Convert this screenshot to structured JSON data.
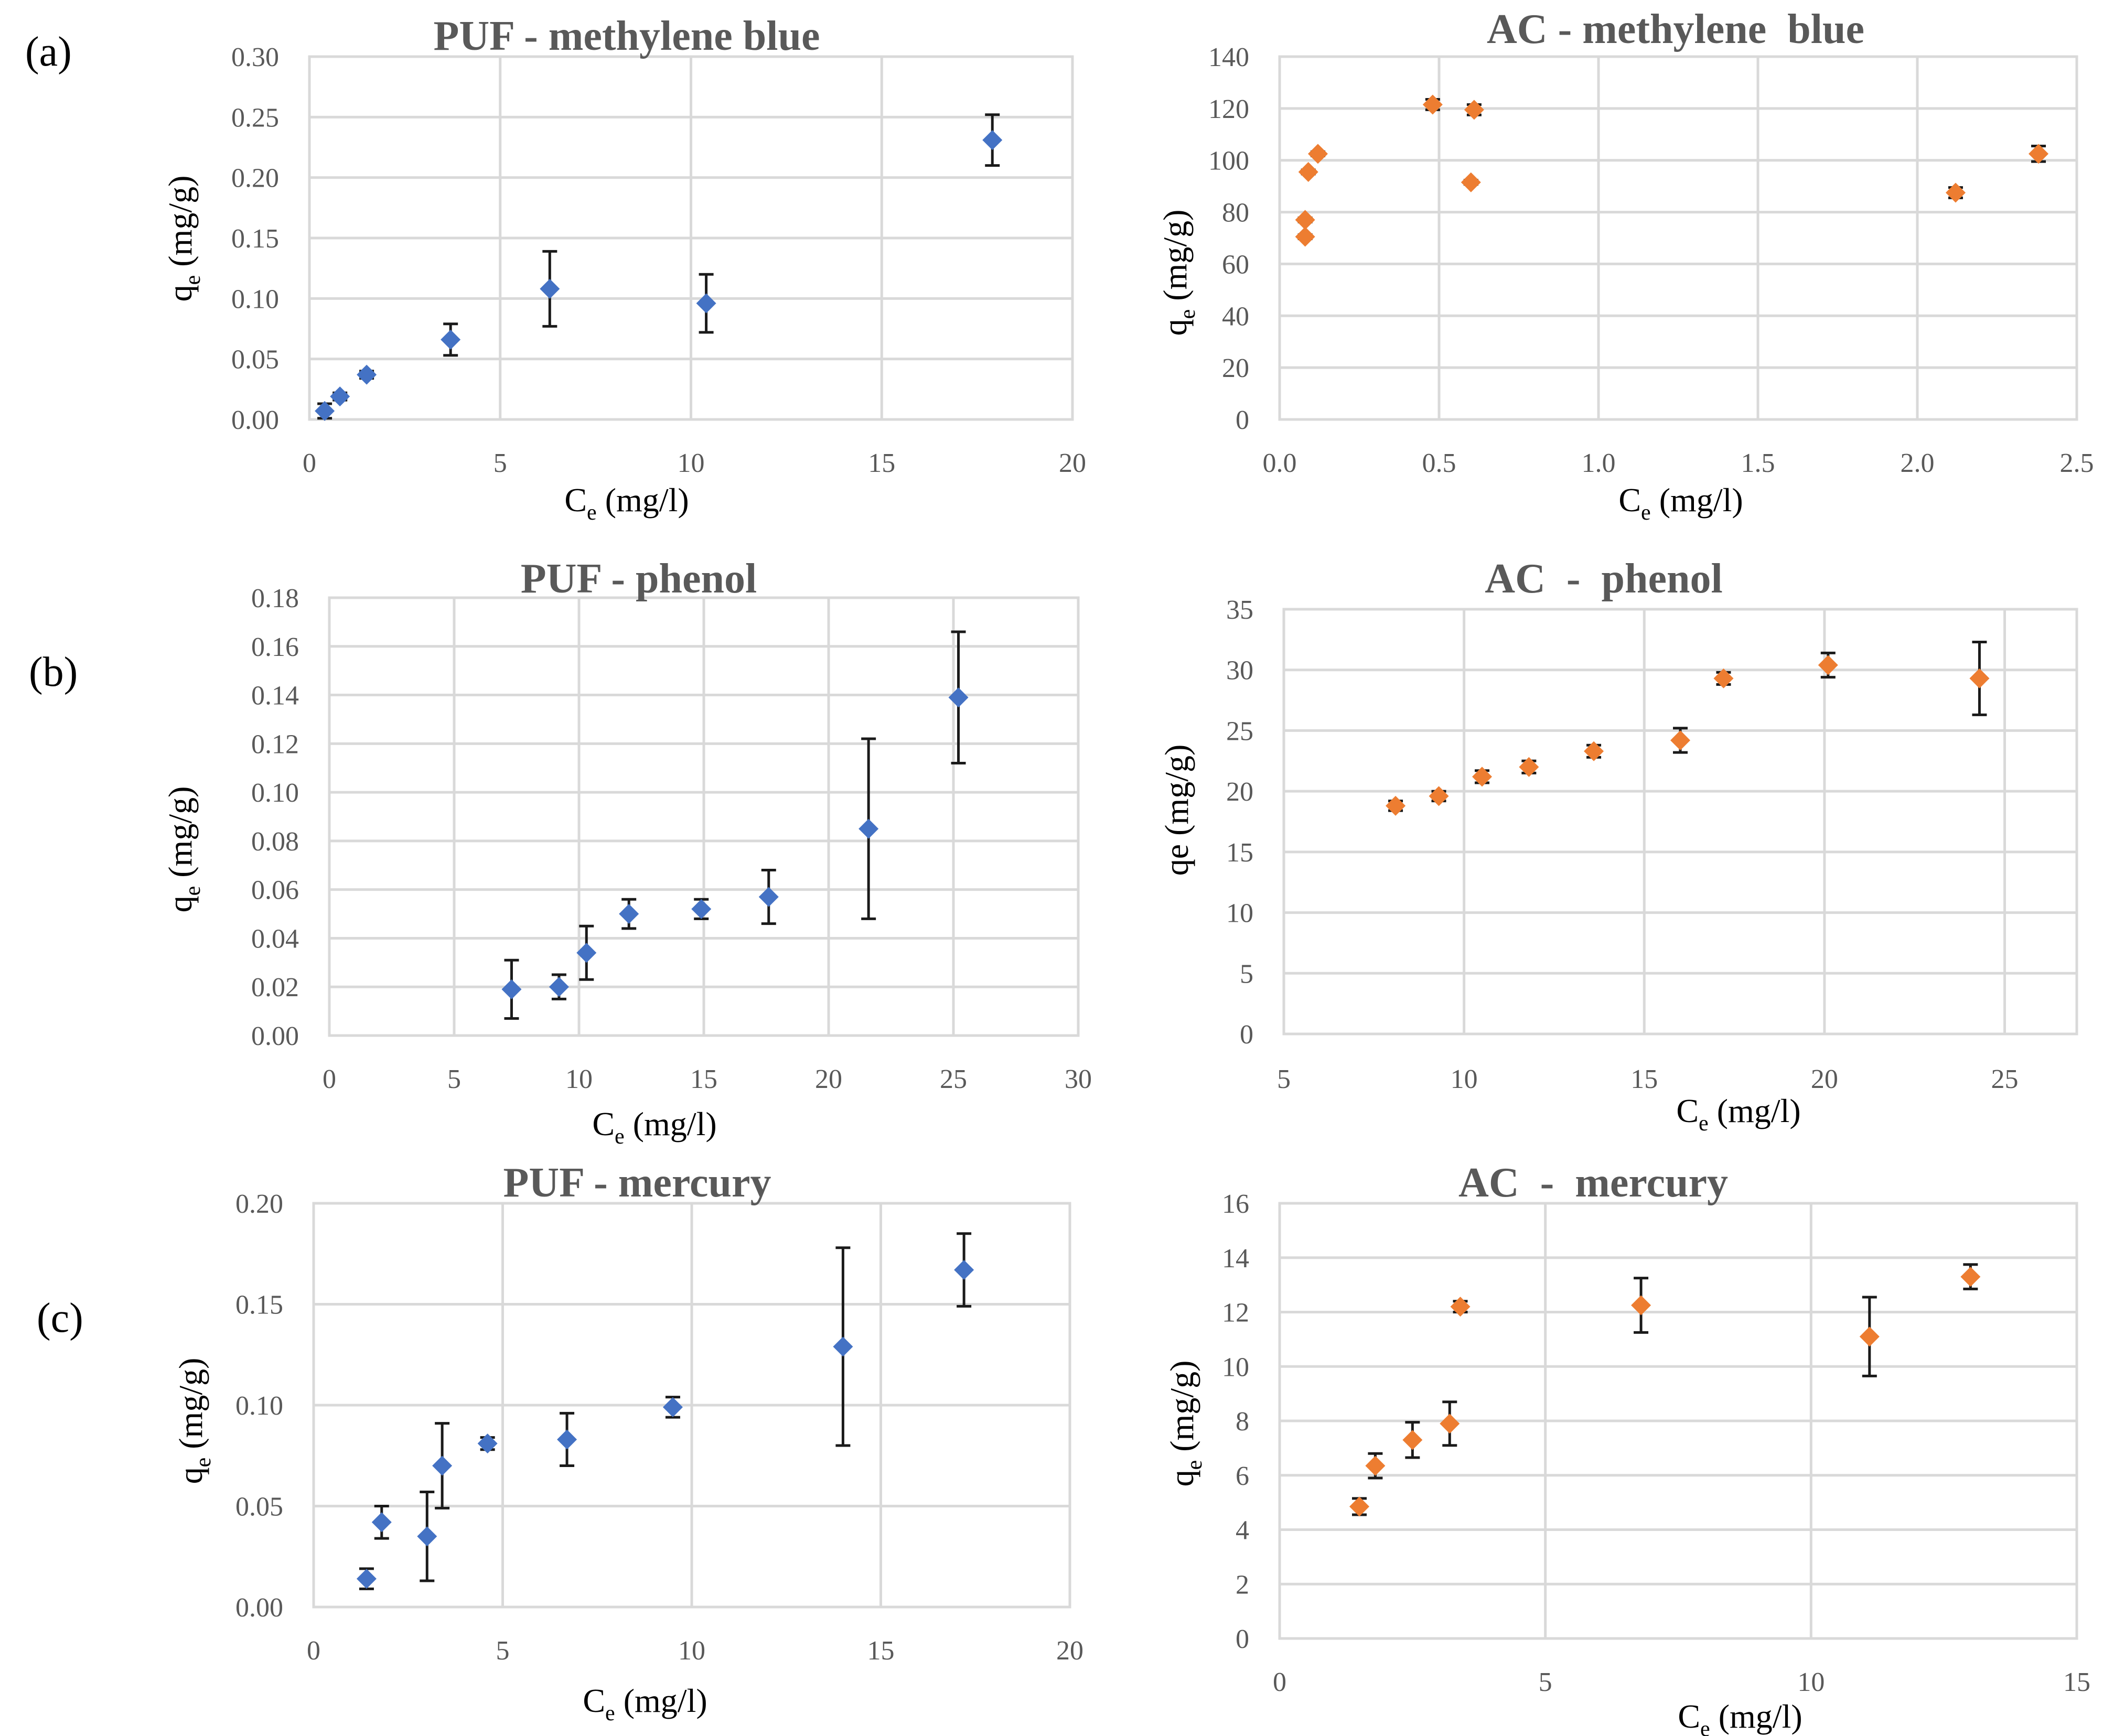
{
  "panel_labels": [
    "(a)",
    "(b)",
    "(c)"
  ],
  "chart_data": [
    {
      "id": "puf-mb",
      "type": "scatter",
      "title": "PUF - methylene blue",
      "xlabel_main": "C",
      "xlabel_sub": "e",
      "xlabel_rest": " (mg/l)",
      "ylabel_main": "q",
      "ylabel_sub": "e",
      "ylabel_rest": " (mg/g)",
      "xlim": [
        0,
        20
      ],
      "xticks": [
        0,
        5,
        10,
        15,
        20
      ],
      "xtick_labels": [
        "0",
        "5",
        "10",
        "15",
        "20"
      ],
      "ylim": [
        0,
        0.3
      ],
      "yticks": [
        0,
        0.05,
        0.1,
        0.15,
        0.2,
        0.25,
        0.3
      ],
      "ytick_labels": [
        "0.00",
        "0.05",
        "0.10",
        "0.15",
        "0.20",
        "0.25",
        "0.30"
      ],
      "color": "#4472c4",
      "points": [
        {
          "x": 0.4,
          "y": 0.007,
          "err": 0.006
        },
        {
          "x": 0.8,
          "y": 0.019,
          "err": 0.003
        },
        {
          "x": 1.5,
          "y": 0.037,
          "err": 0.003
        },
        {
          "x": 3.7,
          "y": 0.066,
          "err": 0.013
        },
        {
          "x": 6.3,
          "y": 0.108,
          "err": 0.031
        },
        {
          "x": 10.4,
          "y": 0.096,
          "err": 0.024
        },
        {
          "x": 17.9,
          "y": 0.231,
          "err": 0.021
        }
      ]
    },
    {
      "id": "ac-mb",
      "type": "scatter",
      "title": "AC - methylene  blue",
      "xlabel_main": "C",
      "xlabel_sub": "e",
      "xlabel_rest": " (mg/l)",
      "ylabel_main": "q",
      "ylabel_sub": "e",
      "ylabel_rest": " (mg/g)",
      "xlim": [
        0,
        2.5
      ],
      "xticks": [
        0,
        0.5,
        1,
        1.5,
        2,
        2.5
      ],
      "xtick_labels": [
        "0.0",
        "0.5",
        "1.0",
        "1.5",
        "2.0",
        "2.5"
      ],
      "ylim": [
        0,
        140
      ],
      "yticks": [
        0,
        20,
        40,
        60,
        80,
        100,
        120,
        140
      ],
      "ytick_labels": [
        "0",
        "20",
        "40",
        "60",
        "80",
        "100",
        "120",
        "140"
      ],
      "color": "#ed7d31",
      "points": [
        {
          "x": 0.08,
          "y": 70.5,
          "err": 0.8
        },
        {
          "x": 0.08,
          "y": 77,
          "err": 0.8
        },
        {
          "x": 0.09,
          "y": 95.5,
          "err": 0.8
        },
        {
          "x": 0.12,
          "y": 102.5,
          "err": 0.8
        },
        {
          "x": 0.48,
          "y": 121.5,
          "err": 2
        },
        {
          "x": 0.6,
          "y": 91.5,
          "err": 0.8
        },
        {
          "x": 0.61,
          "y": 119.5,
          "err": 2
        },
        {
          "x": 2.12,
          "y": 87.5,
          "err": 2
        },
        {
          "x": 2.38,
          "y": 102.5,
          "err": 3
        }
      ]
    },
    {
      "id": "puf-phenol",
      "type": "scatter",
      "title": "PUF - phenol",
      "xlabel_main": "C",
      "xlabel_sub": "e",
      "xlabel_rest": " (mg/l)",
      "ylabel_main": "q",
      "ylabel_sub": "e",
      "ylabel_rest": " (mg/g)",
      "xlim": [
        0,
        30
      ],
      "xticks": [
        0,
        5,
        10,
        15,
        20,
        25,
        30
      ],
      "xtick_labels": [
        "0",
        "5",
        "10",
        "15",
        "20",
        "25",
        "30"
      ],
      "ylim": [
        0,
        0.18
      ],
      "yticks": [
        0,
        0.02,
        0.04,
        0.06,
        0.08,
        0.1,
        0.12,
        0.14,
        0.16,
        0.18
      ],
      "ytick_labels": [
        "0.00",
        "0.02",
        "0.04",
        "0.06",
        "0.08",
        "0.10",
        "0.12",
        "0.14",
        "0.16",
        "0.18"
      ],
      "color": "#4472c4",
      "points": [
        {
          "x": 7.3,
          "y": 0.019,
          "err": 0.012
        },
        {
          "x": 9.2,
          "y": 0.02,
          "err": 0.005
        },
        {
          "x": 10.3,
          "y": 0.034,
          "err": 0.011
        },
        {
          "x": 12.0,
          "y": 0.05,
          "err": 0.006
        },
        {
          "x": 14.9,
          "y": 0.052,
          "err": 0.004
        },
        {
          "x": 17.6,
          "y": 0.057,
          "err": 0.011
        },
        {
          "x": 21.6,
          "y": 0.085,
          "err": 0.037
        },
        {
          "x": 25.2,
          "y": 0.139,
          "err": 0.027
        }
      ]
    },
    {
      "id": "ac-phenol",
      "type": "scatter",
      "title": "AC  -  phenol",
      "xlabel_main": "C",
      "xlabel_sub": "e",
      "xlabel_rest": " (mg/l)",
      "ylabel_main": "qe",
      "ylabel_sub": "",
      "ylabel_rest": " (mg/g)",
      "xlim": [
        5,
        27
      ],
      "xticks": [
        5,
        10,
        15,
        20,
        25
      ],
      "xtick_labels": [
        "5",
        "10",
        "15",
        "20",
        "25"
      ],
      "ylim": [
        0,
        35
      ],
      "yticks": [
        0,
        5,
        10,
        15,
        20,
        25,
        30,
        35
      ],
      "ytick_labels": [
        "0",
        "5",
        "10",
        "15",
        "20",
        "25",
        "30",
        "35"
      ],
      "color": "#ed7d31",
      "points": [
        {
          "x": 8.1,
          "y": 18.8,
          "err": 0.4
        },
        {
          "x": 9.3,
          "y": 19.6,
          "err": 0.4
        },
        {
          "x": 10.5,
          "y": 21.2,
          "err": 0.5
        },
        {
          "x": 11.8,
          "y": 22.0,
          "err": 0.5
        },
        {
          "x": 13.6,
          "y": 23.3,
          "err": 0.5
        },
        {
          "x": 16.0,
          "y": 24.2,
          "err": 1.0
        },
        {
          "x": 17.2,
          "y": 29.3,
          "err": 0.5
        },
        {
          "x": 20.1,
          "y": 30.4,
          "err": 1.0
        },
        {
          "x": 24.3,
          "y": 29.3,
          "err": 3.0
        }
      ]
    },
    {
      "id": "puf-hg",
      "type": "scatter",
      "title": "PUF - mercury",
      "xlabel_main": "C",
      "xlabel_sub": "e",
      "xlabel_rest": " (mg/l)",
      "ylabel_main": "q",
      "ylabel_sub": "e",
      "ylabel_rest": " (mg/g)",
      "xlim": [
        0,
        20
      ],
      "xticks": [
        0,
        5,
        10,
        15,
        20
      ],
      "xtick_labels": [
        "0",
        "5",
        "10",
        "15",
        "20"
      ],
      "ylim": [
        0,
        0.2
      ],
      "yticks": [
        0,
        0.05,
        0.1,
        0.15,
        0.2
      ],
      "ytick_labels": [
        "0.00",
        "0.05",
        "0.10",
        "0.15",
        "0.20"
      ],
      "color": "#4472c4",
      "points": [
        {
          "x": 1.4,
          "y": 0.014,
          "err": 0.005
        },
        {
          "x": 1.8,
          "y": 0.042,
          "err": 0.008
        },
        {
          "x": 3.0,
          "y": 0.035,
          "err": 0.022
        },
        {
          "x": 3.4,
          "y": 0.07,
          "err": 0.021
        },
        {
          "x": 4.6,
          "y": 0.081,
          "err": 0.003
        },
        {
          "x": 6.7,
          "y": 0.083,
          "err": 0.013
        },
        {
          "x": 9.5,
          "y": 0.099,
          "err": 0.005
        },
        {
          "x": 14.0,
          "y": 0.129,
          "err": 0.049
        },
        {
          "x": 17.2,
          "y": 0.167,
          "err": 0.018
        }
      ]
    },
    {
      "id": "ac-hg",
      "type": "scatter",
      "title": "AC  -  mercury",
      "xlabel_main": "C",
      "xlabel_sub": "e",
      "xlabel_rest": " (mg/l)",
      "ylabel_main": "q",
      "ylabel_sub": "e",
      "ylabel_rest": " (mg/g)",
      "xlim": [
        0,
        15
      ],
      "xticks": [
        0,
        5,
        10,
        15
      ],
      "xtick_labels": [
        "0",
        "5",
        "10",
        "15"
      ],
      "ylim": [
        0,
        16
      ],
      "yticks": [
        0,
        2,
        4,
        6,
        8,
        10,
        12,
        14,
        16
      ],
      "ytick_labels": [
        "0",
        "2",
        "4",
        "6",
        "8",
        "10",
        "12",
        "14",
        "16"
      ],
      "color": "#ed7d31",
      "points": [
        {
          "x": 1.5,
          "y": 4.85,
          "err": 0.3
        },
        {
          "x": 1.8,
          "y": 6.35,
          "err": 0.45
        },
        {
          "x": 2.5,
          "y": 7.3,
          "err": 0.65
        },
        {
          "x": 3.2,
          "y": 7.9,
          "err": 0.8
        },
        {
          "x": 3.4,
          "y": 12.2,
          "err": 0.2
        },
        {
          "x": 6.8,
          "y": 12.25,
          "err": 1.0
        },
        {
          "x": 11.1,
          "y": 11.1,
          "err": 1.45
        },
        {
          "x": 13.0,
          "y": 13.3,
          "err": 0.45
        }
      ]
    }
  ]
}
